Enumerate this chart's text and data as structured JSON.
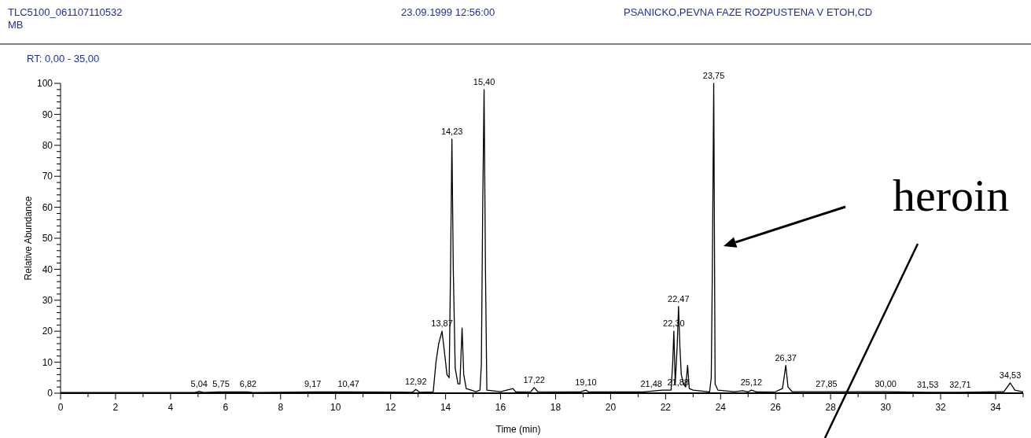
{
  "chart_data": {
    "type": "line",
    "xlabel": "Time (min)",
    "ylabel": "Relative Abundance",
    "xlim": [
      0,
      35
    ],
    "ylim": [
      0,
      100
    ],
    "xticks": [
      0,
      {
        "value": 1,
        "label": null
      },
      2,
      {
        "value": 3,
        "label": null
      },
      4,
      {
        "value": 5,
        "label": null
      },
      6,
      {
        "value": 7,
        "label": null
      },
      8,
      {
        "value": 9,
        "label": null
      },
      10,
      {
        "value": 11,
        "label": null
      },
      12,
      {
        "value": 13,
        "label": null
      },
      14,
      {
        "value": 15,
        "label": null
      },
      16,
      {
        "value": 17,
        "label": null
      },
      18,
      {
        "value": 19,
        "label": null
      },
      20,
      {
        "value": 21,
        "label": null
      },
      22,
      {
        "value": 23,
        "label": null
      },
      24,
      {
        "value": 25,
        "label": null
      },
      26,
      {
        "value": 27,
        "label": null
      },
      28,
      {
        "value": 29,
        "label": null
      },
      30,
      {
        "value": 31,
        "label": null
      },
      32,
      {
        "value": 33,
        "label": null
      },
      34,
      {
        "value": 35,
        "label": null
      }
    ],
    "yticks": [
      0,
      {
        "value": 2,
        "label": null
      },
      {
        "value": 4,
        "label": null
      },
      {
        "value": 6,
        "label": null
      },
      {
        "value": 8,
        "label": null
      },
      10,
      {
        "value": 12,
        "label": null
      },
      {
        "value": 14,
        "label": null
      },
      {
        "value": 16,
        "label": null
      },
      {
        "value": 18,
        "label": null
      },
      20,
      {
        "value": 22,
        "label": null
      },
      {
        "value": 24,
        "label": null
      },
      {
        "value": 26,
        "label": null
      },
      {
        "value": 28,
        "label": null
      },
      30,
      {
        "value": 32,
        "label": null
      },
      {
        "value": 34,
        "label": null
      },
      {
        "value": 36,
        "label": null
      },
      {
        "value": 38,
        "label": null
      },
      40,
      {
        "value": 42,
        "label": null
      },
      {
        "value": 44,
        "label": null
      },
      {
        "value": 46,
        "label": null
      },
      {
        "value": 48,
        "label": null
      },
      50,
      {
        "value": 52,
        "label": null
      },
      {
        "value": 54,
        "label": null
      },
      {
        "value": 56,
        "label": null
      },
      {
        "value": 58,
        "label": null
      },
      60,
      {
        "value": 62,
        "label": null
      },
      {
        "value": 64,
        "label": null
      },
      {
        "value": 66,
        "label": null
      },
      {
        "value": 68,
        "label": null
      },
      70,
      {
        "value": 72,
        "label": null
      },
      {
        "value": 74,
        "label": null
      },
      {
        "value": 76,
        "label": null
      },
      {
        "value": 78,
        "label": null
      },
      80,
      {
        "value": 82,
        "label": null
      },
      {
        "value": 84,
        "label": null
      },
      {
        "value": 86,
        "label": null
      },
      {
        "value": 88,
        "label": null
      },
      90,
      {
        "value": 92,
        "label": null
      },
      {
        "value": 94,
        "label": null
      },
      {
        "value": 96,
        "label": null
      },
      {
        "value": 98,
        "label": null
      },
      100
    ],
    "marker": "none",
    "line_style": "solid",
    "series": [
      {
        "color": "#000000",
        "x": [
          0,
          4.9,
          5.04,
          5.2,
          5.75,
          6.82,
          7,
          9.17,
          10.47,
          12.8,
          12.92,
          13.05,
          13.55,
          13.65,
          13.75,
          13.87,
          13.95,
          14.05,
          14.13,
          14.18,
          14.23,
          14.28,
          14.35,
          14.45,
          14.52,
          14.6,
          14.66,
          14.75,
          15.0,
          15.1,
          15.25,
          15.3,
          15.35,
          15.4,
          15.45,
          15.5,
          16.0,
          16.45,
          16.55,
          17.1,
          17.22,
          17.35,
          18.9,
          19.1,
          19.2,
          21.2,
          21.88,
          22.2,
          22.26,
          22.3,
          22.35,
          22.42,
          22.47,
          22.52,
          22.57,
          22.65,
          22.73,
          22.8,
          22.86,
          23.0,
          23.6,
          23.66,
          23.7,
          23.75,
          23.8,
          23.9,
          24.5,
          24.8,
          25.0,
          25.12,
          25.3,
          26.0,
          26.25,
          26.37,
          26.45,
          26.6,
          27.85,
          30.0,
          31.53,
          32.71,
          34.3,
          34.53,
          34.7,
          35
        ],
        "values": [
          0.2,
          0.2,
          0.6,
          0.2,
          0.4,
          0.4,
          0.2,
          0.4,
          0.4,
          0.3,
          1.2,
          0.3,
          0.4,
          10,
          16,
          20,
          14,
          6,
          5,
          40,
          82,
          40,
          8,
          3,
          3,
          21,
          6,
          1.5,
          0.8,
          0.5,
          1,
          9,
          60,
          98,
          40,
          1,
          0.5,
          1.5,
          0.4,
          0.5,
          1.8,
          0.5,
          0.4,
          1,
          0.4,
          0.4,
          1,
          1,
          10,
          20,
          3,
          15,
          28,
          15,
          6,
          3,
          2,
          9,
          1.5,
          1,
          0.4,
          5,
          40,
          100,
          3,
          1,
          0.5,
          0.8,
          0.4,
          1,
          0.4,
          0.5,
          1.5,
          9,
          2,
          0.5,
          0.5,
          0.5,
          0.3,
          0.3,
          0.5,
          3.3,
          1,
          0.4
        ]
      }
    ],
    "annotations": [
      "TLC5100_061107110532",
      "MB",
      "23.09.1999 12:56:00",
      "PSANICKO,PEVNA FAZE ROZPUSTENA V ETOH,CD",
      "RT: 0,00 - 35,00",
      {
        "text": "5,04",
        "x": 5.04,
        "y": 0.6
      },
      {
        "text": "5,75",
        "x": 5.75,
        "y": 0.4
      },
      {
        "text": "6,82",
        "x": 6.82,
        "y": 0.4
      },
      {
        "text": "9,17",
        "x": 9.17,
        "y": 0.4
      },
      {
        "text": "10,47",
        "x": 10.47,
        "y": 0.4
      },
      {
        "text": "12,92",
        "x": 12.92,
        "y": 1.2
      },
      {
        "text": "13,87",
        "x": 13.87,
        "y": 20
      },
      {
        "text": "14,23",
        "x": 14.23,
        "y": 82
      },
      {
        "text": "15,40",
        "x": 15.4,
        "y": 98
      },
      {
        "text": "17,22",
        "x": 17.22,
        "y": 1.8
      },
      {
        "text": "19,10",
        "x": 19.1,
        "y": 1
      },
      {
        "text": "21,48",
        "x": 21.48,
        "y": 0.5
      },
      {
        "text": "21,88",
        "x": 21.88,
        "y": 1
      },
      {
        "text": "22,30",
        "x": 22.3,
        "y": 20
      },
      {
        "text": "22,47",
        "x": 22.47,
        "y": 28
      },
      {
        "text": "23,75",
        "x": 23.75,
        "y": 100
      },
      {
        "text": "25,12",
        "x": 25.12,
        "y": 1
      },
      {
        "text": "26,37",
        "x": 26.37,
        "y": 9
      },
      {
        "text": "27,85",
        "x": 27.85,
        "y": 0.5
      },
      {
        "text": "30,00",
        "x": 30,
        "y": 0.5
      },
      {
        "text": "31,53",
        "x": 31.53,
        "y": 0.3
      },
      {
        "text": "32,71",
        "x": 32.71,
        "y": 0.3
      },
      {
        "text": "34,53",
        "x": 34.53,
        "y": 3.3
      },
      "heroin"
    ]
  }
}
